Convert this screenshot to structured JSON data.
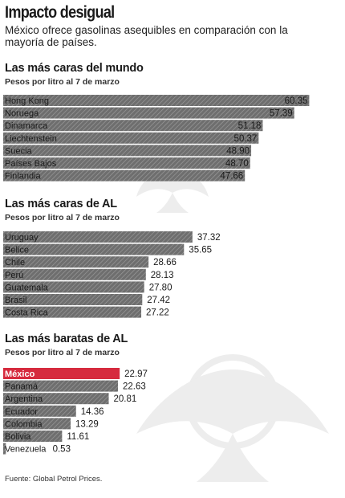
{
  "header": {
    "title": "Impacto desigual",
    "subtitle": "México ofrece gasolinas asequibles en comparación con la mayoría de países."
  },
  "footer": {
    "source": "Fuente: Global Petrol Prices."
  },
  "colors": {
    "bar": "#6e6e6e",
    "highlight": "#d62a3e",
    "text": "#1a1a1a"
  },
  "chart_data": [
    {
      "type": "bar",
      "orientation": "horizontal",
      "title": "Las más caras del mundo",
      "subtitle": "Pesos por litro al 7 de marzo",
      "categories": [
        "Hong Kong",
        "Noruega",
        "Dinamarca",
        "Liechtenstein",
        "Suecia",
        "Países Bajos",
        "Finlandia"
      ],
      "values": [
        60.35,
        57.39,
        51.18,
        50.37,
        48.9,
        48.7,
        47.66
      ],
      "value_labels": [
        "60.35",
        "57.39",
        "51.18",
        "50.37",
        "48.90",
        "48.70",
        "47.66"
      ],
      "highlight": []
    },
    {
      "type": "bar",
      "orientation": "horizontal",
      "title": "Las más caras de AL",
      "subtitle": "Pesos por litro al 7 de marzo",
      "categories": [
        "Uruguay",
        "Belice",
        "Chile",
        "Perú",
        "Guatemala",
        "Brasil",
        "Costa Rica"
      ],
      "values": [
        37.32,
        35.65,
        28.66,
        28.13,
        27.8,
        27.42,
        27.22
      ],
      "value_labels": [
        "37.32",
        "35.65",
        "28.66",
        "28.13",
        "27.80",
        "27.42",
        "27.22"
      ],
      "highlight": []
    },
    {
      "type": "bar",
      "orientation": "horizontal",
      "title": "Las más baratas de AL",
      "subtitle": "Pesos por litro al 7 de marzo",
      "categories": [
        "México",
        "Panamá",
        "Argentina",
        "Ecuador",
        "Colombia",
        "Bolivia",
        "Venezuela"
      ],
      "values": [
        22.97,
        22.63,
        20.81,
        14.36,
        13.29,
        11.61,
        0.53
      ],
      "value_labels": [
        "22.97",
        "22.63",
        "20.81",
        "14.36",
        "13.29",
        "11.61",
        "0.53"
      ],
      "highlight": [
        "México"
      ]
    }
  ]
}
